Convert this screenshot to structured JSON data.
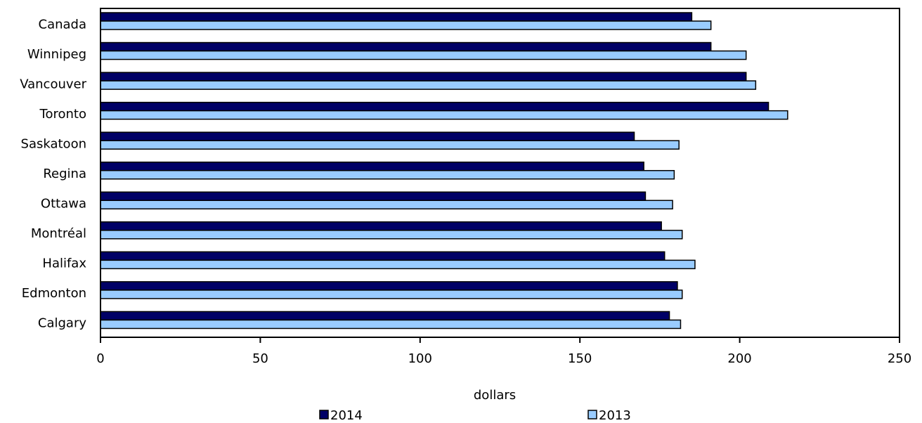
{
  "chart_data": {
    "type": "bar",
    "orientation": "horizontal",
    "categories": [
      "Canada",
      "Winnipeg",
      "Vancouver",
      "Toronto",
      "Saskatoon",
      "Regina",
      "Ottawa",
      "Montréal",
      "Halifax",
      "Edmonton",
      "Calgary"
    ],
    "series": [
      {
        "name": "2014",
        "color": "#000066",
        "values": [
          185,
          191,
          202,
          209,
          167,
          170,
          170.5,
          175.5,
          176.5,
          180.5,
          178
        ]
      },
      {
        "name": "2013",
        "color": "#99ccff",
        "values": [
          191,
          202,
          205,
          215,
          181,
          179.5,
          179,
          182,
          186,
          182,
          181.5
        ]
      }
    ],
    "xlabel": "dollars",
    "xlim": [
      0,
      250
    ],
    "xticks": [
      "0",
      "50",
      "100",
      "150",
      "200",
      "250"
    ],
    "grid": false,
    "legend_position": "bottom"
  }
}
